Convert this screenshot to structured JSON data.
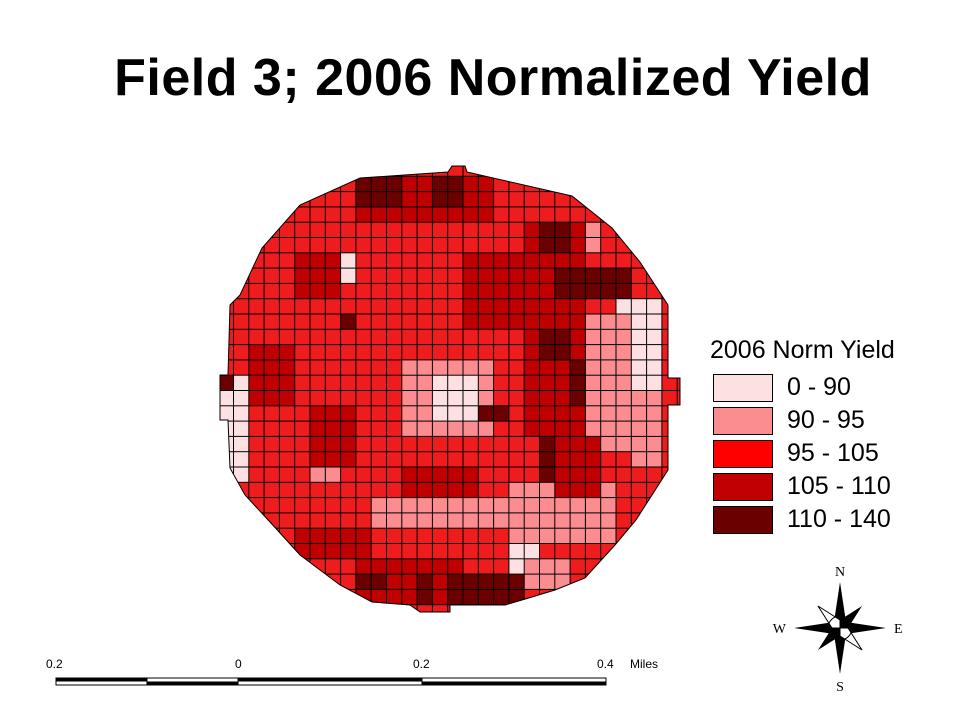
{
  "title": "Field 3; 2006 Normalized Yield",
  "legend": {
    "title": "2006 Norm Yield",
    "classes": [
      {
        "label": "0 - 90",
        "color": "#fde0e2"
      },
      {
        "label": "90 - 95",
        "color": "#fb8c8f"
      },
      {
        "label": "95 - 105",
        "color": "#ff0000"
      },
      {
        "label": "105 - 110",
        "color": "#c00000"
      },
      {
        "label": "110 - 140",
        "color": "#6b0000"
      }
    ]
  },
  "scale_bar": {
    "labels": [
      "0.2",
      "0",
      "0.2",
      "0.4"
    ],
    "unit": "Miles"
  },
  "north_arrow": {
    "n": "N",
    "s": "S",
    "e": "E",
    "w": "W"
  },
  "grid_fill_color": "#ee1c1c",
  "grid_line_color": "#000000"
}
